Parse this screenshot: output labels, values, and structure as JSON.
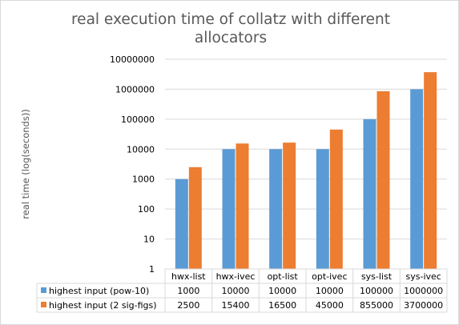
{
  "chart_data": {
    "type": "bar",
    "title": "real execution time of collatz with different allocators",
    "title_lines": [
      "real execution time of collatz with different",
      "allocators"
    ],
    "ylabel": "real time (log(seconds))",
    "xlabel": "",
    "y_scale": "log",
    "ylim": [
      1,
      10000000
    ],
    "y_ticks": [
      "1",
      "10",
      "100",
      "1000",
      "10000",
      "100000",
      "1000000",
      "10000000"
    ],
    "grid": true,
    "legend_position": "bottom-table",
    "categories": [
      "hwx-list",
      "hwx-ivec",
      "opt-list",
      "opt-ivec",
      "sys-list",
      "sys-ivec"
    ],
    "series": [
      {
        "name": "highest input (pow-10)",
        "color": "#5b9bd5",
        "values": [
          1000,
          10000,
          10000,
          10000,
          100000,
          1000000
        ],
        "labels": [
          "1000",
          "10000",
          "10000",
          "10000",
          "100000",
          "1000000"
        ]
      },
      {
        "name": "highest input (2 sig-figs)",
        "color": "#ed7d31",
        "values": [
          2500,
          15400,
          16500,
          45000,
          855000,
          3700000
        ],
        "labels": [
          "2500",
          "15400",
          "16500",
          "45000",
          "855000",
          "3700000"
        ]
      }
    ]
  }
}
